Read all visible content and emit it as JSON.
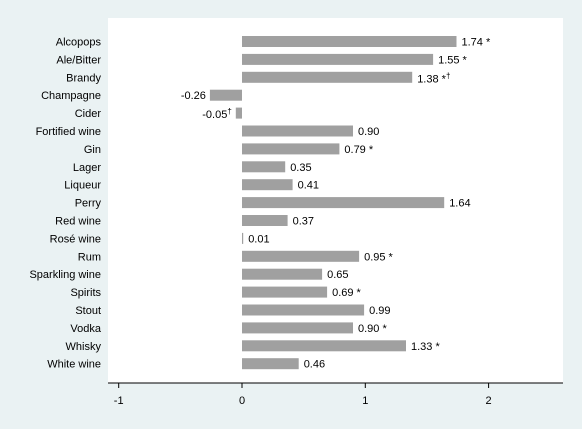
{
  "chart_data": {
    "type": "bar",
    "orientation": "horizontal",
    "title": "",
    "xlabel": "",
    "ylabel": "",
    "xlim": [
      -1,
      2.6
    ],
    "xticks": [
      -1,
      0,
      1,
      2
    ],
    "grid": false,
    "legend": "none",
    "colors": {
      "bar": "#a0a0a0",
      "plot_bg": "#ffffff",
      "outer_bg": "#eaf2f3",
      "text": "#000000"
    },
    "categories": [
      "Alcopops",
      "Ale/Bitter",
      "Brandy",
      "Champagne",
      "Cider",
      "Fortified wine",
      "Gin",
      "Lager",
      "Liqueur",
      "Perry",
      "Red wine",
      "Rosé wine",
      "Rum",
      "Sparkling wine",
      "Spirits",
      "Stout",
      "Vodka",
      "Whisky",
      "White wine"
    ],
    "values": [
      1.74,
      1.55,
      1.38,
      -0.26,
      -0.05,
      0.9,
      0.79,
      0.35,
      0.41,
      1.64,
      0.37,
      0.01,
      0.95,
      0.65,
      0.69,
      0.99,
      0.9,
      1.33,
      0.46
    ],
    "data_labels": [
      "1.74 *",
      "1.55 *",
      "1.38 *",
      "-0.26",
      "-0.05",
      "0.90",
      "0.79 *",
      "0.35",
      "0.41",
      "1.64",
      "0.37",
      "0.01",
      "0.95 *",
      "0.65",
      "0.69 *",
      "0.99",
      "0.90 *",
      "1.33 *",
      "0.46"
    ],
    "label_superscripts": [
      "",
      "",
      "†",
      "",
      "†",
      "",
      "",
      "",
      "",
      "",
      "",
      "",
      "",
      "",
      "",
      "",
      "",
      "",
      ""
    ]
  }
}
